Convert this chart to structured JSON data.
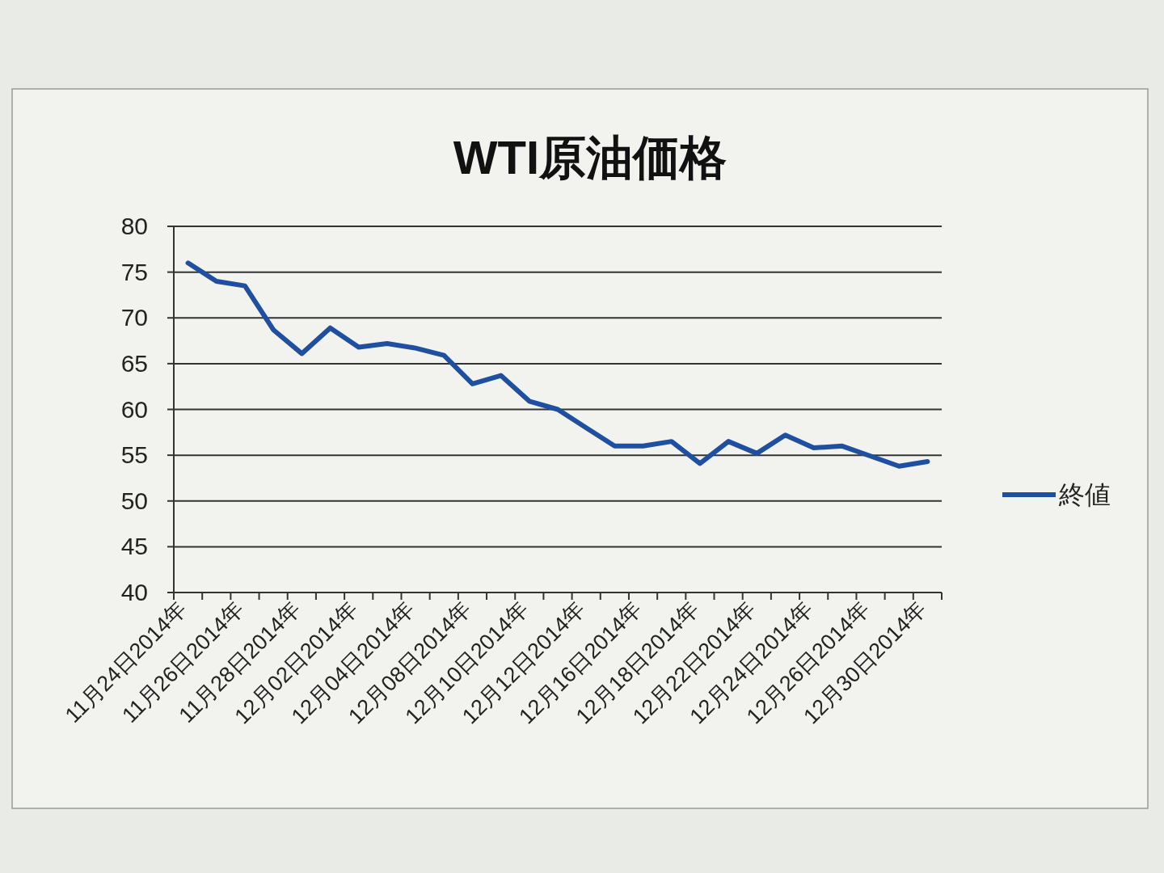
{
  "chart_data": {
    "type": "line",
    "title": "WTI原油価格",
    "categories": [
      "11月24日2014年",
      null,
      "11月26日2014年",
      null,
      "11月28日2014年",
      null,
      "12月02日2014年",
      null,
      "12月04日2014年",
      null,
      "12月08日2014年",
      null,
      "12月10日2014年",
      null,
      "12月12日2014年",
      null,
      "12月16日2014年",
      null,
      "12月18日2014年",
      null,
      "12月22日2014年",
      null,
      "12月24日2014年",
      null,
      "12月26日2014年",
      null,
      "12月30日2014年"
    ],
    "series": [
      {
        "name": "終値",
        "color": "#1f4fa0",
        "values": [
          76.0,
          74.0,
          73.5,
          68.7,
          66.1,
          68.9,
          66.8,
          67.2,
          66.7,
          65.9,
          62.8,
          63.7,
          60.9,
          60.0,
          58.0,
          56.0,
          56.0,
          56.5,
          54.1,
          56.5,
          55.2,
          57.2,
          55.8,
          56.0,
          54.9,
          53.8,
          54.3
        ]
      }
    ],
    "ylim": [
      40,
      80
    ],
    "yticks": [
      40,
      45,
      50,
      55,
      60,
      65,
      70,
      75,
      80
    ],
    "grid": "y",
    "legend": "right"
  }
}
